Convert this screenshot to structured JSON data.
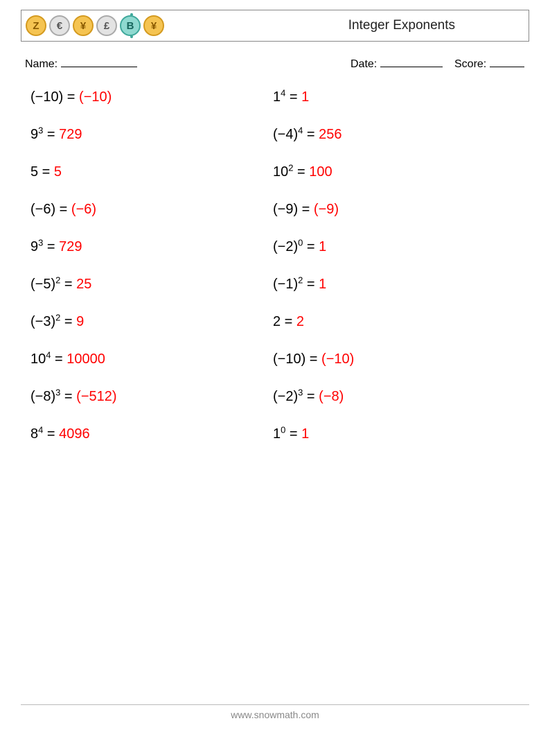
{
  "header": {
    "title": "Integer Exponents",
    "coins": [
      "Z",
      "€",
      "¥",
      "£",
      "B",
      "¥"
    ]
  },
  "info": {
    "name_label": "Name:",
    "date_label": "Date:",
    "score_label": "Score:",
    "name_underline_width": 110,
    "date_underline_width": 90,
    "score_underline_width": 50
  },
  "columns": [
    [
      {
        "base": "(−10)",
        "exp": "",
        "answer": "(−10)"
      },
      {
        "base": "9",
        "exp": "3",
        "answer": "729"
      },
      {
        "base": "5",
        "exp": "",
        "answer": "5"
      },
      {
        "base": "(−6)",
        "exp": "",
        "answer": "(−6)"
      },
      {
        "base": "9",
        "exp": "3",
        "answer": "729"
      },
      {
        "base": "(−5)",
        "exp": "2",
        "answer": "25"
      },
      {
        "base": "(−3)",
        "exp": "2",
        "answer": "9"
      },
      {
        "base": "10",
        "exp": "4",
        "answer": "10000"
      },
      {
        "base": "(−8)",
        "exp": "3",
        "answer": "(−512)"
      },
      {
        "base": "8",
        "exp": "4",
        "answer": "4096"
      }
    ],
    [
      {
        "base": "1",
        "exp": "4",
        "answer": "1"
      },
      {
        "base": "(−4)",
        "exp": "4",
        "answer": "256"
      },
      {
        "base": "10",
        "exp": "2",
        "answer": "100"
      },
      {
        "base": "(−9)",
        "exp": "",
        "answer": "(−9)"
      },
      {
        "base": "(−2)",
        "exp": "0",
        "answer": "1"
      },
      {
        "base": "(−1)",
        "exp": "2",
        "answer": "1"
      },
      {
        "base": "2",
        "exp": "",
        "answer": "2"
      },
      {
        "base": "(−10)",
        "exp": "",
        "answer": "(−10)"
      },
      {
        "base": "(−2)",
        "exp": "3",
        "answer": "(−8)"
      },
      {
        "base": "1",
        "exp": "0",
        "answer": "1"
      }
    ]
  ],
  "footer": {
    "url": "www.snowmath.com"
  },
  "colors": {
    "answer": "#ff0000",
    "text": "#000000",
    "border": "#888888",
    "footer": "#888888"
  },
  "fonts": {
    "body": 20,
    "sup": 13,
    "title": 19,
    "info": 16,
    "footer": 14
  }
}
